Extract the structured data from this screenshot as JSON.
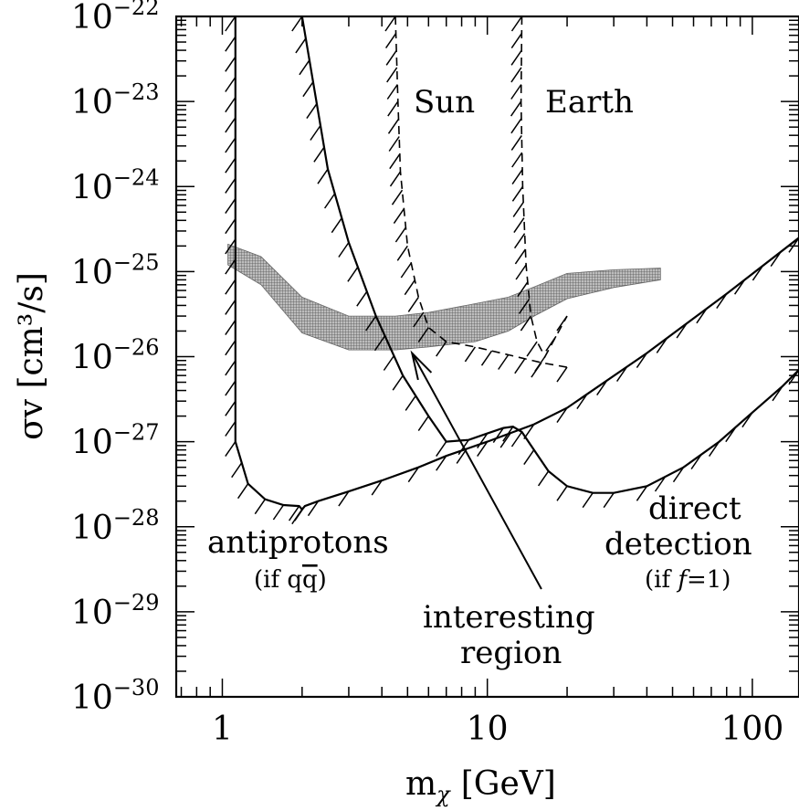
{
  "chart_data": {
    "type": "line",
    "title": "",
    "xlabel": "m",
    "xlabel_sub": "χ",
    "xlabel_unit": "[GeV]",
    "ylabel": "σv  [cm³/s]",
    "x_scale": "log",
    "y_scale": "log",
    "xlim": [
      0.67,
      150
    ],
    "ylim": [
      1e-30,
      1e-22
    ],
    "x_ticks": [
      {
        "value": 1,
        "label": "1"
      },
      {
        "value": 10,
        "label": "10"
      },
      {
        "value": 100,
        "label": "100"
      }
    ],
    "y_ticks": [
      {
        "value": 1e-22,
        "base": "10",
        "exp": "−22"
      },
      {
        "value": 1e-23,
        "base": "10",
        "exp": "−23"
      },
      {
        "value": 1e-24,
        "base": "10",
        "exp": "−24"
      },
      {
        "value": 1e-25,
        "base": "10",
        "exp": "−25"
      },
      {
        "value": 1e-26,
        "base": "10",
        "exp": "−26"
      },
      {
        "value": 1e-27,
        "base": "10",
        "exp": "−27"
      },
      {
        "value": 1e-28,
        "base": "10",
        "exp": "−28"
      },
      {
        "value": 1e-29,
        "base": "10",
        "exp": "−29"
      },
      {
        "value": 1e-30,
        "base": "10",
        "exp": "−30"
      }
    ],
    "series": [
      {
        "id": "antiprotons",
        "style": "solid",
        "hatched": true,
        "x": [
          1.12,
          1.12,
          1.25,
          1.45,
          1.7,
          1.95,
          2.0,
          2.05,
          2.3,
          3.0,
          4.0,
          5.5,
          7.0,
          10,
          15,
          20,
          40,
          80,
          150
        ],
        "y": [
          1e-22,
          1e-27,
          3.2e-28,
          2.1e-28,
          1.8e-28,
          1.75e-28,
          1.6e-28,
          1.75e-28,
          2e-28,
          2.6e-28,
          3.5e-28,
          5e-28,
          6.8e-28,
          1e-27,
          1.6e-27,
          2.5e-27,
          1.1e-26,
          5.5e-26,
          2.5e-25
        ]
      },
      {
        "id": "direct-detection",
        "style": "solid",
        "hatched": true,
        "x": [
          2.0,
          2.5,
          3.0,
          3.8,
          4.8,
          6.0,
          7.0,
          8.5,
          10,
          11.5,
          12.5,
          13.5,
          15,
          17,
          20,
          25,
          30,
          40,
          55,
          75,
          100,
          130,
          150
        ],
        "y": [
          1e-22,
          1.6e-24,
          2.2e-25,
          3e-26,
          6e-27,
          2e-27,
          1e-27,
          1.05e-27,
          1.25e-27,
          1.45e-27,
          1.5e-27,
          1.3e-27,
          8e-28,
          4.5e-28,
          3e-28,
          2.5e-28,
          2.5e-28,
          3e-28,
          5e-28,
          1e-27,
          2.2e-27,
          4.5e-27,
          7e-27
        ]
      },
      {
        "id": "sun",
        "style": "dashed",
        "hatched": true,
        "x": [
          4.5,
          4.6,
          4.7,
          5.0,
          5.5,
          6.0,
          7.0,
          9.0,
          12,
          16,
          20
        ],
        "y": [
          1e-22,
          1e-23,
          1.5e-24,
          2e-25,
          5e-26,
          2.2e-26,
          1.5e-26,
          1.3e-26,
          1.05e-26,
          8.5e-27,
          7.5e-27
        ]
      },
      {
        "id": "earth",
        "style": "dashed",
        "hatched": true,
        "x": [
          13.5,
          13.4,
          13.6,
          14.0,
          14.6,
          15.4,
          16.5,
          20
        ],
        "y": [
          1e-22,
          1e-23,
          1e-24,
          1.2e-25,
          3e-26,
          1.5e-26,
          1e-26,
          3e-26
        ]
      }
    ],
    "region": {
      "id": "interesting-region",
      "style": "filled-mesh",
      "x": [
        1.05,
        1.4,
        2.0,
        3.0,
        4.5,
        6.0,
        9.0,
        12,
        15,
        20,
        30,
        45
      ],
      "y_upper": [
        2.1e-25,
        1.5e-25,
        5e-26,
        3e-26,
        3e-26,
        3.3e-26,
        4.2e-26,
        5e-26,
        6.6e-26,
        9.5e-26,
        1.05e-25,
        1.1e-25
      ],
      "y_lower": [
        1.2e-25,
        7e-26,
        1.9e-26,
        1.2e-26,
        1.2e-26,
        1.3e-26,
        1.5e-26,
        2e-26,
        3e-26,
        4.8e-26,
        6.5e-26,
        8e-26
      ]
    },
    "arrow": {
      "from": [
        16,
        6e-30
      ],
      "to": [
        5.2,
        1.1e-26
      ]
    },
    "annotations": {
      "sun": "Sun",
      "earth": "Earth",
      "antiprotons": "antiprotons",
      "antiprotons_cond": "(if q",
      "antiprotons_qbar": "q",
      "antiprotons_close": ")",
      "direct_1": "direct",
      "direct_2": "detection",
      "direct_cond_pre": "(if ",
      "direct_cond_f": "f",
      "direct_cond_post": "=1)",
      "interesting_1": "interesting",
      "interesting_2": "region"
    }
  }
}
